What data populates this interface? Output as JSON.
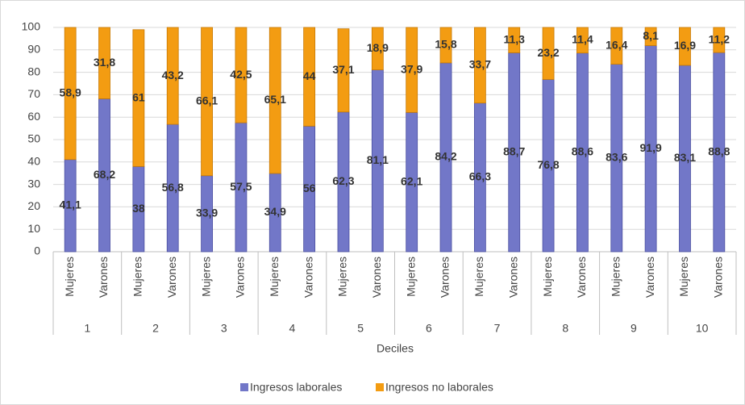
{
  "chart_data": {
    "type": "stacked_bar",
    "x_label": "Deciles",
    "categories": [
      "Mujeres",
      "Varones",
      "Mujeres",
      "Varones",
      "Mujeres",
      "Varones",
      "Mujeres",
      "Varones",
      "Mujeres",
      "Varones",
      "Mujeres",
      "Varones",
      "Mujeres",
      "Varones",
      "Mujeres",
      "Varones",
      "Mujeres",
      "Varones",
      "Mujeres",
      "Varones"
    ],
    "groups": [
      "1",
      "2",
      "3",
      "4",
      "5",
      "6",
      "7",
      "8",
      "9",
      "10"
    ],
    "series": [
      {
        "name": "Ingresos laborales",
        "color": "#7277c8",
        "values": [
          41.1,
          68.2,
          38,
          56.8,
          33.9,
          57.5,
          34.9,
          56,
          62.3,
          81.1,
          62.1,
          84.2,
          66.3,
          88.7,
          76.8,
          88.6,
          83.6,
          91.9,
          83.1,
          88.8
        ],
        "value_labels": [
          "41,1",
          "68,2",
          "38",
          "56,8",
          "33,9",
          "57,5",
          "34,9",
          "56",
          "62,3",
          "81,1",
          "62,1",
          "84,2",
          "66,3",
          "88,7",
          "76,8",
          "88,6",
          "83,6",
          "91,9",
          "83,1",
          "88,8"
        ]
      },
      {
        "name": "Ingresos no laborales",
        "color": "#f39c12",
        "values": [
          58.9,
          31.8,
          61,
          43.2,
          66.1,
          42.5,
          65.1,
          44,
          37.1,
          18.9,
          37.9,
          15.8,
          33.7,
          11.3,
          23.2,
          11.4,
          16.4,
          8.1,
          16.9,
          11.2
        ],
        "value_labels": [
          "58,9",
          "31,8",
          "61",
          "43,2",
          "66,1",
          "42,5",
          "65,1",
          "44",
          "37,1",
          "18,9",
          "37,9",
          "15,8",
          "33,7",
          "11,3",
          "23,2",
          "11,4",
          "16,4",
          "8,1",
          "16,9",
          "11,2"
        ]
      }
    ],
    "ylim": [
      0,
      100
    ],
    "yticks": [
      0,
      10,
      20,
      30,
      40,
      50,
      60,
      70,
      80,
      90,
      100
    ],
    "grid": true,
    "legend": "bottom"
  }
}
